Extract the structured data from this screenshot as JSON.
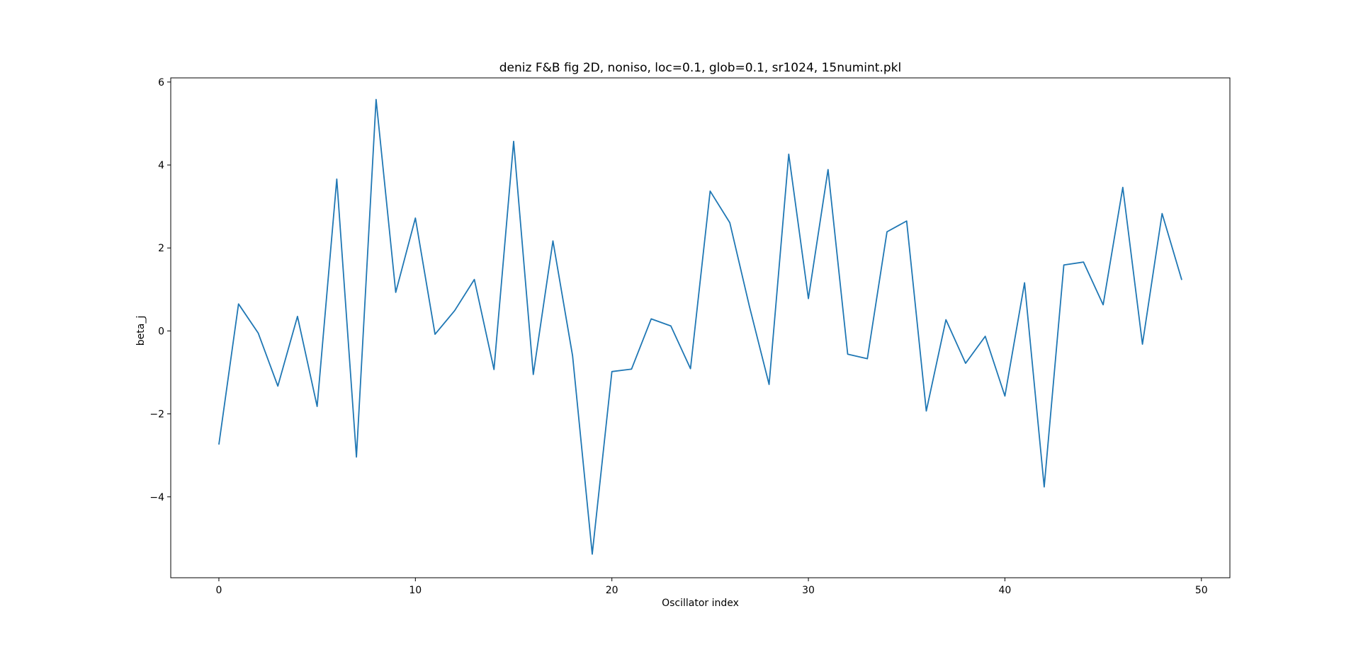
{
  "chart_data": {
    "type": "line",
    "title": "deniz F&B fig 2D, noniso, loc=0.1, glob=0.1, sr1024, 15numint.pkl",
    "xlabel": "Oscillator index",
    "ylabel": "beta_j",
    "xlim": [
      -2.45,
      51.45
    ],
    "ylim": [
      -5.95,
      6.1
    ],
    "xticks": [
      0,
      10,
      20,
      30,
      40,
      50
    ],
    "yticks": [
      -4,
      -2,
      0,
      2,
      4,
      6
    ],
    "ytick_labels": [
      "−4",
      "−2",
      "0",
      "2",
      "4",
      "6"
    ],
    "grid": false,
    "line_color": "#1f77b4",
    "series": [
      {
        "x": [
          0,
          1,
          2,
          3,
          4,
          5,
          6,
          7,
          8,
          9,
          10,
          11,
          12,
          13,
          14,
          15,
          16,
          17,
          18,
          19,
          20,
          21,
          22,
          23,
          24,
          25,
          26,
          27,
          28,
          29,
          30,
          31,
          32,
          33,
          34,
          35,
          36,
          37,
          38,
          39,
          40,
          41,
          42,
          43,
          44,
          45,
          46,
          47,
          48,
          49
        ],
        "values": [
          -2.74,
          0.65,
          -0.05,
          -1.33,
          0.35,
          -1.82,
          3.66,
          -3.04,
          5.58,
          0.93,
          2.72,
          -0.08,
          0.49,
          1.24,
          -0.93,
          4.57,
          -1.05,
          2.17,
          -0.6,
          -5.38,
          -0.98,
          -0.92,
          0.29,
          0.12,
          -0.91,
          3.37,
          2.61,
          0.59,
          -1.29,
          4.26,
          0.78,
          3.89,
          -0.56,
          -0.67,
          2.39,
          2.65,
          -1.93,
          0.27,
          -0.78,
          -0.13,
          -1.57,
          1.16,
          -3.76,
          1.59,
          1.66,
          0.63,
          3.46,
          -0.32,
          2.83,
          1.23
        ]
      }
    ]
  }
}
